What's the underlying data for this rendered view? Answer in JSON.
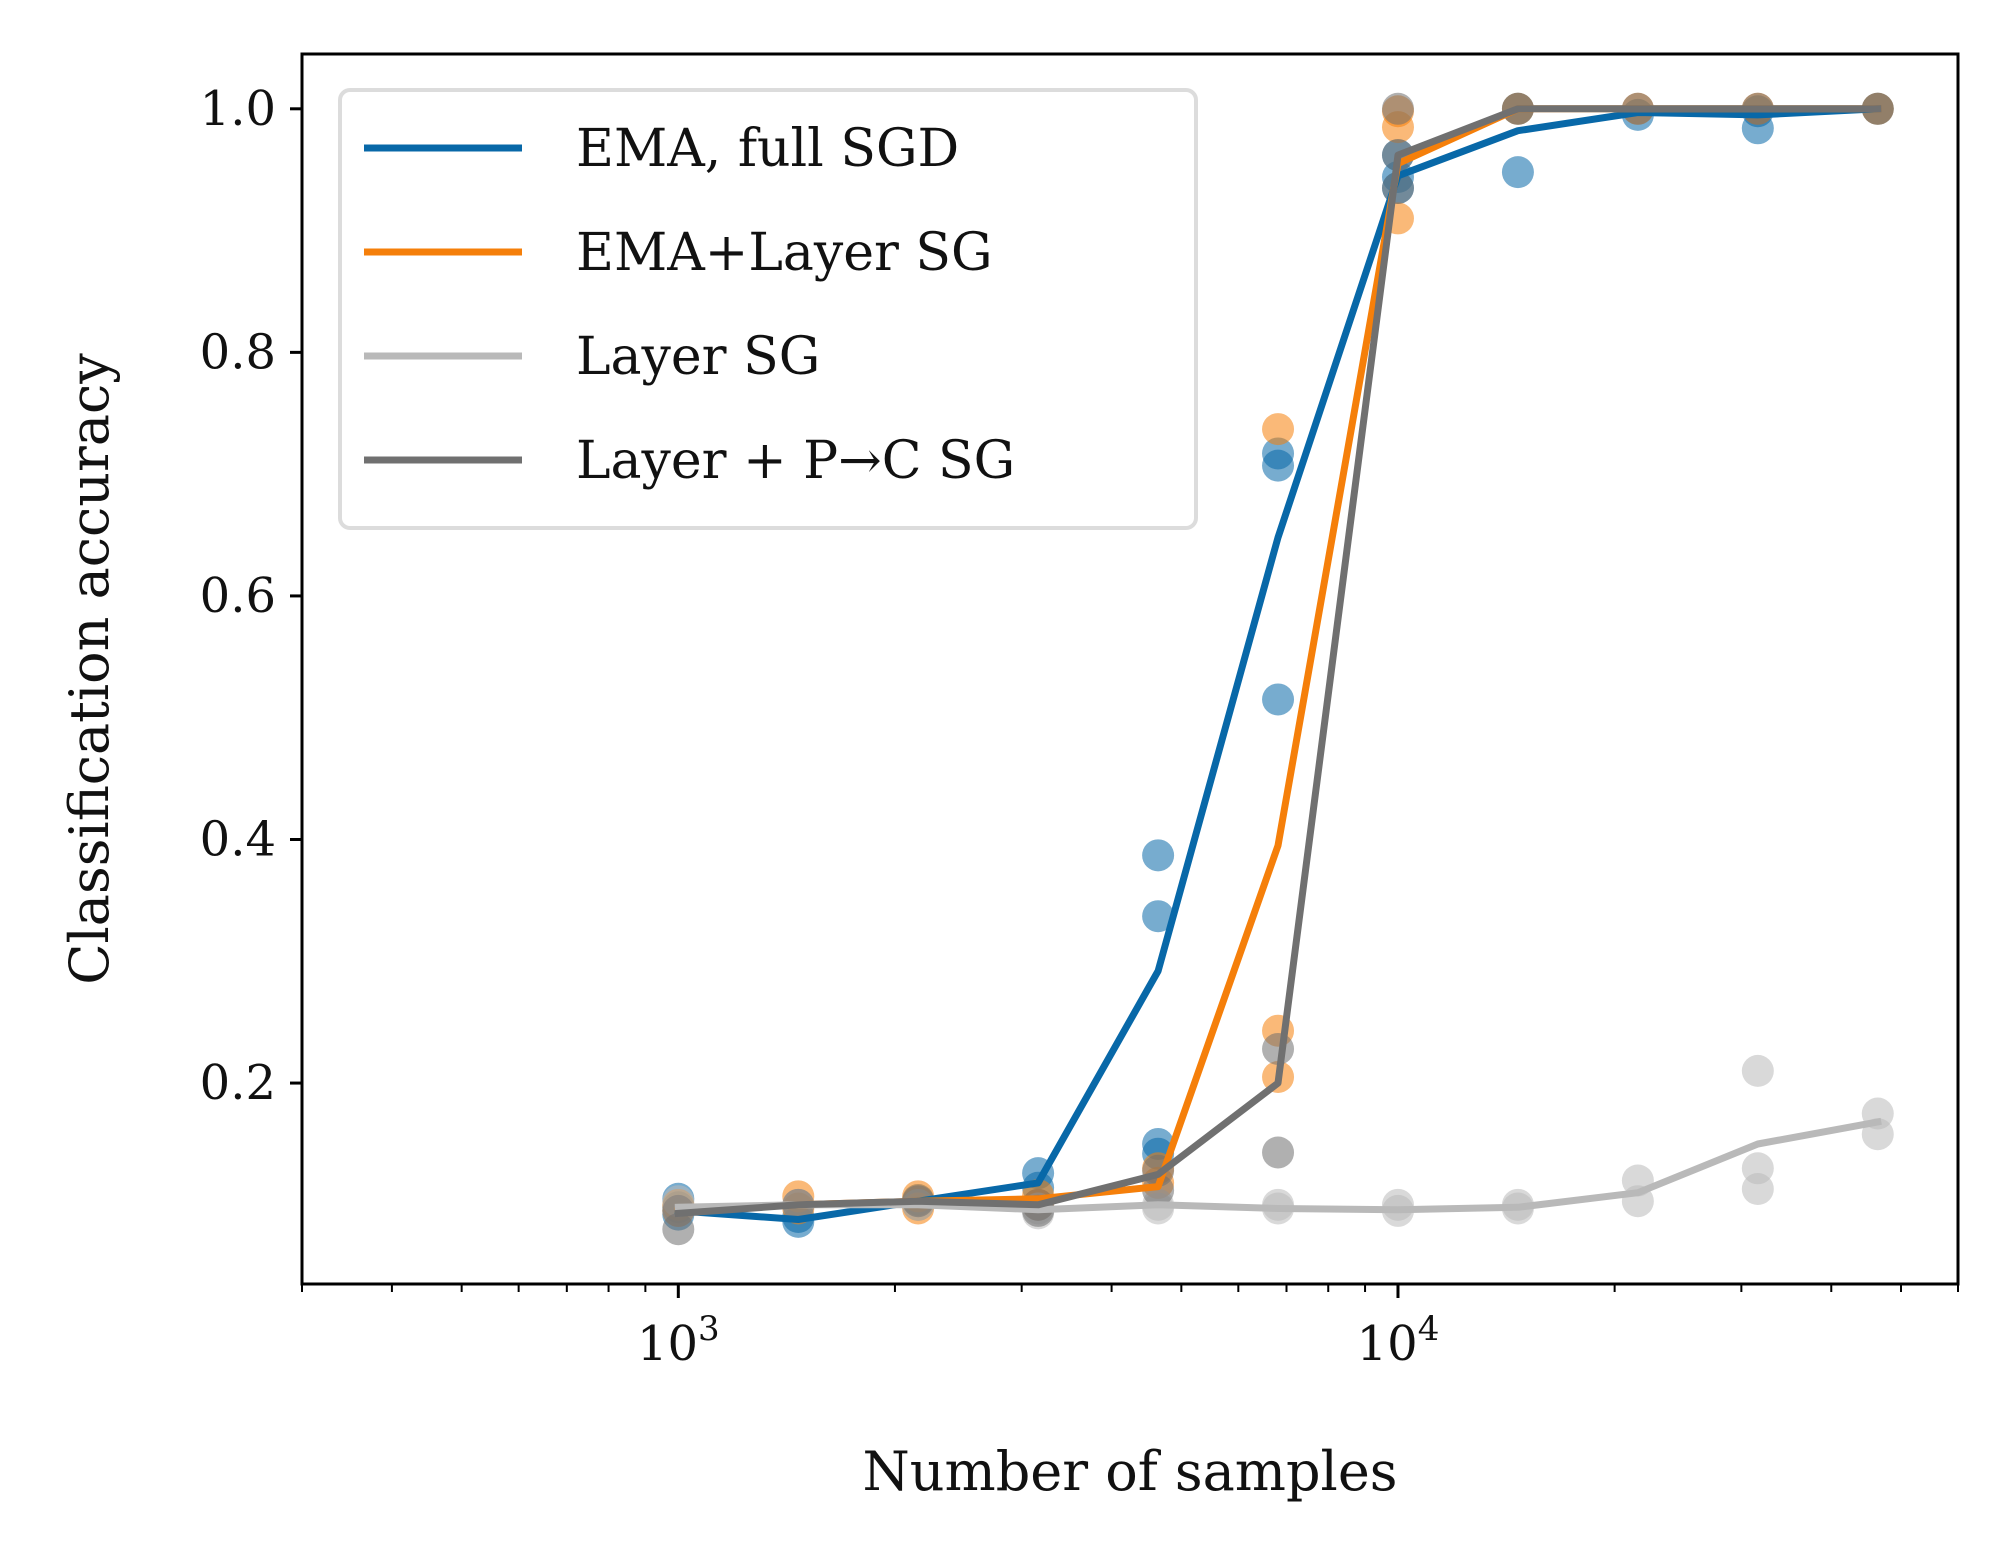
{
  "chart_data": {
    "type": "line",
    "xlabel": "Number of samples",
    "ylabel": "Classification accuracy",
    "xscale": "log",
    "xlim": [
      300,
      60000
    ],
    "ylim": [
      0.035,
      1.045
    ],
    "grid": false,
    "legend_position": "top-left",
    "x_ticks": [
      {
        "value": 1000,
        "base": "10",
        "exp": "3"
      },
      {
        "value": 10000,
        "base": "10",
        "exp": "4"
      }
    ],
    "y_ticks": [
      {
        "value": 0.2,
        "label": "0.2"
      },
      {
        "value": 0.4,
        "label": "0.4"
      },
      {
        "value": 0.6,
        "label": "0.6"
      },
      {
        "value": 0.8,
        "label": "0.8"
      },
      {
        "value": 1.0,
        "label": "1.0"
      }
    ],
    "x": [
      1000,
      1468,
      2154,
      3162,
      4642,
      6813,
      10000,
      14678,
      21544,
      31623,
      46416
    ],
    "series": [
      {
        "name": "EMA, full SGD",
        "color": "#0868a8",
        "mean": [
          0.095,
          0.088,
          0.103,
          0.118,
          0.292,
          0.648,
          0.945,
          0.982,
          0.997,
          0.995,
          1.0
        ],
        "points": [
          [
            1000,
            0.105
          ],
          [
            1000,
            0.098
          ],
          [
            1000,
            0.092
          ],
          [
            1468,
            0.086
          ],
          [
            1468,
            0.09
          ],
          [
            2154,
            0.104
          ],
          [
            2154,
            0.1
          ],
          [
            3162,
            0.126
          ],
          [
            3162,
            0.114
          ],
          [
            4642,
            0.387
          ],
          [
            4642,
            0.337
          ],
          [
            4642,
            0.15
          ],
          [
            4642,
            0.142
          ],
          [
            6813,
            0.717
          ],
          [
            6813,
            0.707
          ],
          [
            6813,
            0.515
          ],
          [
            10000,
            0.962
          ],
          [
            10000,
            0.944
          ],
          [
            10000,
            0.935
          ],
          [
            14678,
            1.0
          ],
          [
            14678,
            0.948
          ],
          [
            21544,
            0.995
          ],
          [
            31623,
            0.998
          ],
          [
            31623,
            0.984
          ],
          [
            46416,
            1.0
          ]
        ]
      },
      {
        "name": "EMA+Layer SG",
        "color": "#f57f0a",
        "mean": [
          0.095,
          0.1,
          0.103,
          0.105,
          0.115,
          0.395,
          0.955,
          1.0,
          1.0,
          1.0,
          1.0
        ],
        "points": [
          [
            1000,
            0.1
          ],
          [
            1000,
            0.095
          ],
          [
            1468,
            0.107
          ],
          [
            1468,
            0.097
          ],
          [
            2154,
            0.107
          ],
          [
            2154,
            0.097
          ],
          [
            3162,
            0.108
          ],
          [
            3162,
            0.1
          ],
          [
            4642,
            0.13
          ],
          [
            4642,
            0.118
          ],
          [
            6813,
            0.737
          ],
          [
            6813,
            0.243
          ],
          [
            6813,
            0.205
          ],
          [
            10000,
            0.998
          ],
          [
            10000,
            0.985
          ],
          [
            10000,
            0.91
          ],
          [
            14678,
            1.0
          ],
          [
            21544,
            1.0
          ],
          [
            31623,
            1.0
          ],
          [
            46416,
            1.0
          ]
        ]
      },
      {
        "name": "Layer SG",
        "color": "#b9b9b9",
        "mean": [
          0.098,
          0.1,
          0.1,
          0.096,
          0.1,
          0.097,
          0.096,
          0.098,
          0.11,
          0.15,
          0.168
        ],
        "points": [
          [
            1000,
            0.103
          ],
          [
            1000,
            0.095
          ],
          [
            1468,
            0.1
          ],
          [
            2154,
            0.1
          ],
          [
            3162,
            0.097
          ],
          [
            3162,
            0.093
          ],
          [
            4642,
            0.1
          ],
          [
            4642,
            0.097
          ],
          [
            6813,
            0.1
          ],
          [
            6813,
            0.097
          ],
          [
            10000,
            0.1
          ],
          [
            10000,
            0.095
          ],
          [
            14678,
            0.1
          ],
          [
            14678,
            0.097
          ],
          [
            21544,
            0.12
          ],
          [
            21544,
            0.103
          ],
          [
            31623,
            0.21
          ],
          [
            31623,
            0.13
          ],
          [
            31623,
            0.113
          ],
          [
            46416,
            0.175
          ],
          [
            46416,
            0.158
          ]
        ]
      },
      {
        "name": "Layer + P→C SG",
        "color": "#707070",
        "mean": [
          0.093,
          0.1,
          0.103,
          0.1,
          0.125,
          0.2,
          0.962,
          1.0,
          1.0,
          1.0,
          1.0
        ],
        "points": [
          [
            1000,
            0.095
          ],
          [
            1000,
            0.08
          ],
          [
            1468,
            0.1
          ],
          [
            2154,
            0.103
          ],
          [
            3162,
            0.1
          ],
          [
            3162,
            0.095
          ],
          [
            4642,
            0.128
          ],
          [
            4642,
            0.112
          ],
          [
            6813,
            0.228
          ],
          [
            6813,
            0.143
          ],
          [
            10000,
            1.0
          ],
          [
            10000,
            0.962
          ],
          [
            10000,
            0.935
          ],
          [
            14678,
            1.0
          ],
          [
            21544,
            1.0
          ],
          [
            31623,
            1.0
          ],
          [
            46416,
            1.0
          ]
        ]
      }
    ]
  }
}
